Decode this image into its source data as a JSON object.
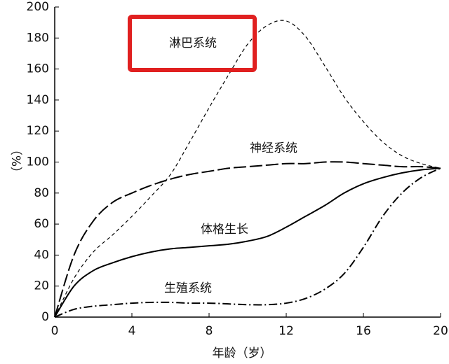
{
  "chart_data": {
    "type": "line",
    "x_label": "年龄（岁）",
    "y_label": "（%）",
    "x": [
      0,
      1,
      2,
      3,
      4,
      5,
      6,
      7,
      8,
      9,
      10,
      11,
      12,
      13,
      14,
      15,
      16,
      17,
      18,
      19,
      20
    ],
    "series": [
      {
        "name": "淋巴系统",
        "color": "#000000",
        "dash": "dashed",
        "values": [
          0,
          25,
          42,
          53,
          65,
          78,
          92,
          113,
          135,
          156,
          176,
          188,
          191,
          181,
          162,
          142,
          126,
          113,
          104,
          99,
          96
        ]
      },
      {
        "name": "神经系统",
        "color": "#000000",
        "dash": "long-dashed",
        "values": [
          0,
          40,
          62,
          74,
          80,
          85,
          89,
          92,
          94,
          96,
          97,
          98,
          99,
          99,
          100,
          100,
          99,
          98,
          97,
          97,
          96
        ]
      },
      {
        "name": "体格生长",
        "color": "#000000",
        "dash": "solid",
        "values": [
          0,
          20,
          30,
          35,
          39,
          42,
          44,
          45,
          46,
          47,
          49,
          52,
          58,
          65,
          72,
          80,
          86,
          90,
          93,
          95,
          96
        ]
      },
      {
        "name": "生殖系统",
        "color": "#000000",
        "dash": "dash-dot",
        "values": [
          0,
          5,
          7,
          8,
          9,
          9.5,
          9.5,
          9,
          9,
          8.5,
          8,
          8,
          9,
          12,
          18,
          28,
          45,
          65,
          80,
          90,
          96
        ]
      }
    ],
    "xlim": [
      0,
      20
    ],
    "xticks": [
      0,
      4,
      8,
      12,
      16,
      20
    ],
    "ylim": [
      0,
      200
    ],
    "yticks": [
      0,
      20,
      40,
      60,
      80,
      100,
      120,
      140,
      160,
      180,
      200
    ],
    "highlight": "淋巴系统"
  }
}
